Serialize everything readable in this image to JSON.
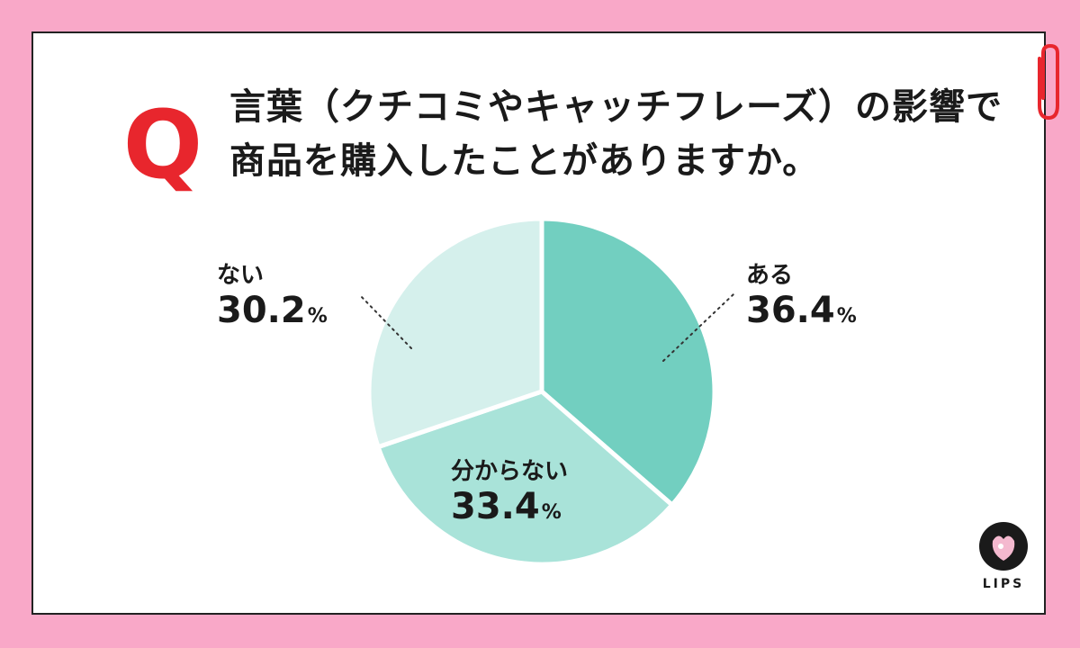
{
  "question_mark": "Q",
  "title_lines": [
    "言葉（クチコミやキャッチフレーズ）の影響で",
    "商品を購入したことがありますか。"
  ],
  "chart_data": {
    "type": "pie",
    "start_angle_deg": 0,
    "direction": "clockwise",
    "slices": [
      {
        "label": "ある",
        "value": 36.4,
        "display": "36.4",
        "color": "#72cfc0"
      },
      {
        "label": "分からない",
        "value": 33.4,
        "display": "33.4",
        "color": "#a9e3d9"
      },
      {
        "label": "ない",
        "value": 30.2,
        "display": "30.2",
        "color": "#d5f0ec"
      }
    ],
    "unit": "%"
  },
  "colors": {
    "background": "#f9a8c8",
    "card": "#ffffff",
    "accent_red": "#e8262d"
  },
  "logo": {
    "text": "LIPS"
  }
}
